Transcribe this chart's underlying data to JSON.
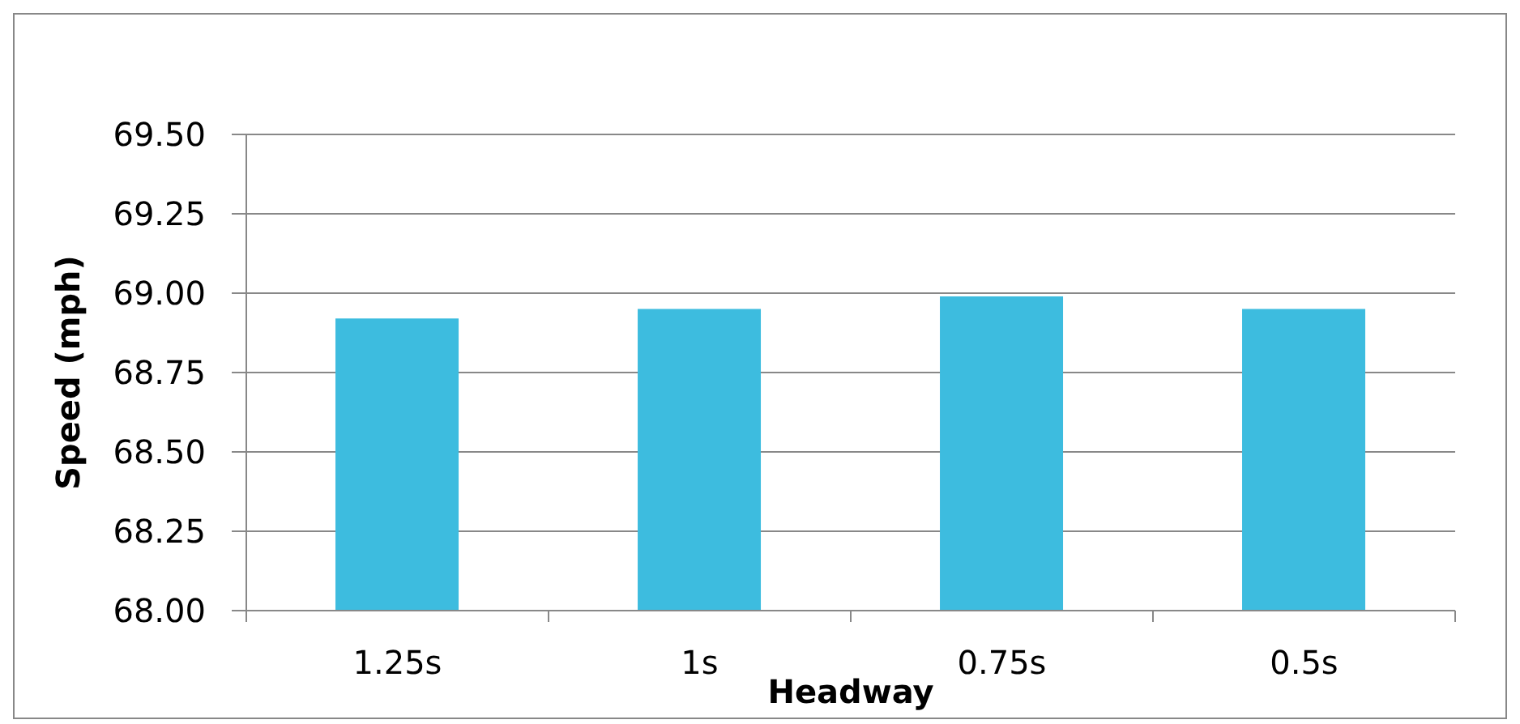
{
  "chart_data": {
    "type": "bar",
    "xlabel": "Headway",
    "ylabel": "Speed (mph)",
    "categories": [
      "1.25s",
      "1s",
      "0.75s",
      "0.5s"
    ],
    "values": [
      68.92,
      68.95,
      68.99,
      68.95
    ],
    "color": "#3dbcdf",
    "ylim": [
      68,
      69.5
    ],
    "yticks": [
      {
        "value": 68,
        "label": "68.00"
      },
      {
        "value": 68.25,
        "label": "68.25"
      },
      {
        "value": 68.5,
        "label": "68.50"
      },
      {
        "value": 68.75,
        "label": "68.75"
      },
      {
        "value": 69,
        "label": "69.00"
      },
      {
        "value": 69.25,
        "label": "69.25"
      },
      {
        "value": 69.5,
        "label": "69.50"
      }
    ],
    "grid": "y"
  }
}
